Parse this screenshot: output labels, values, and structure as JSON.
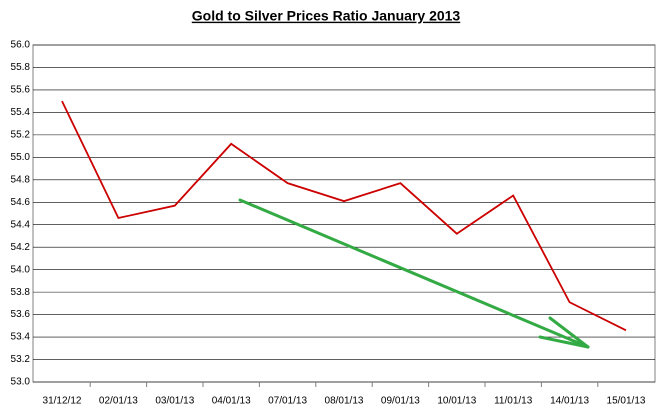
{
  "chart_data": {
    "type": "line",
    "title": "Gold to Silver Prices Ratio January 2013",
    "categories": [
      "31/12/12",
      "02/01/13",
      "03/01/13",
      "04/01/13",
      "07/01/13",
      "08/01/13",
      "09/01/13",
      "10/01/13",
      "11/01/13",
      "14/01/13",
      "15/01/13"
    ],
    "values": [
      55.5,
      54.46,
      54.57,
      55.12,
      54.77,
      54.61,
      54.77,
      54.32,
      54.66,
      53.71,
      53.46
    ],
    "color": "#cc0000",
    "ylim": [
      53.0,
      56.0
    ],
    "yticks": [
      {
        "value": 53,
        "label": "53.0"
      },
      53.2,
      53.4,
      53.6,
      53.8,
      {
        "value": 54,
        "label": "54.0"
      },
      54.2,
      54.4,
      54.6,
      54.8,
      {
        "value": 55,
        "label": "55.0"
      },
      55.2,
      55.4,
      55.6,
      55.8,
      {
        "value": 56,
        "label": "56.0"
      }
    ],
    "grid": true
  }
}
